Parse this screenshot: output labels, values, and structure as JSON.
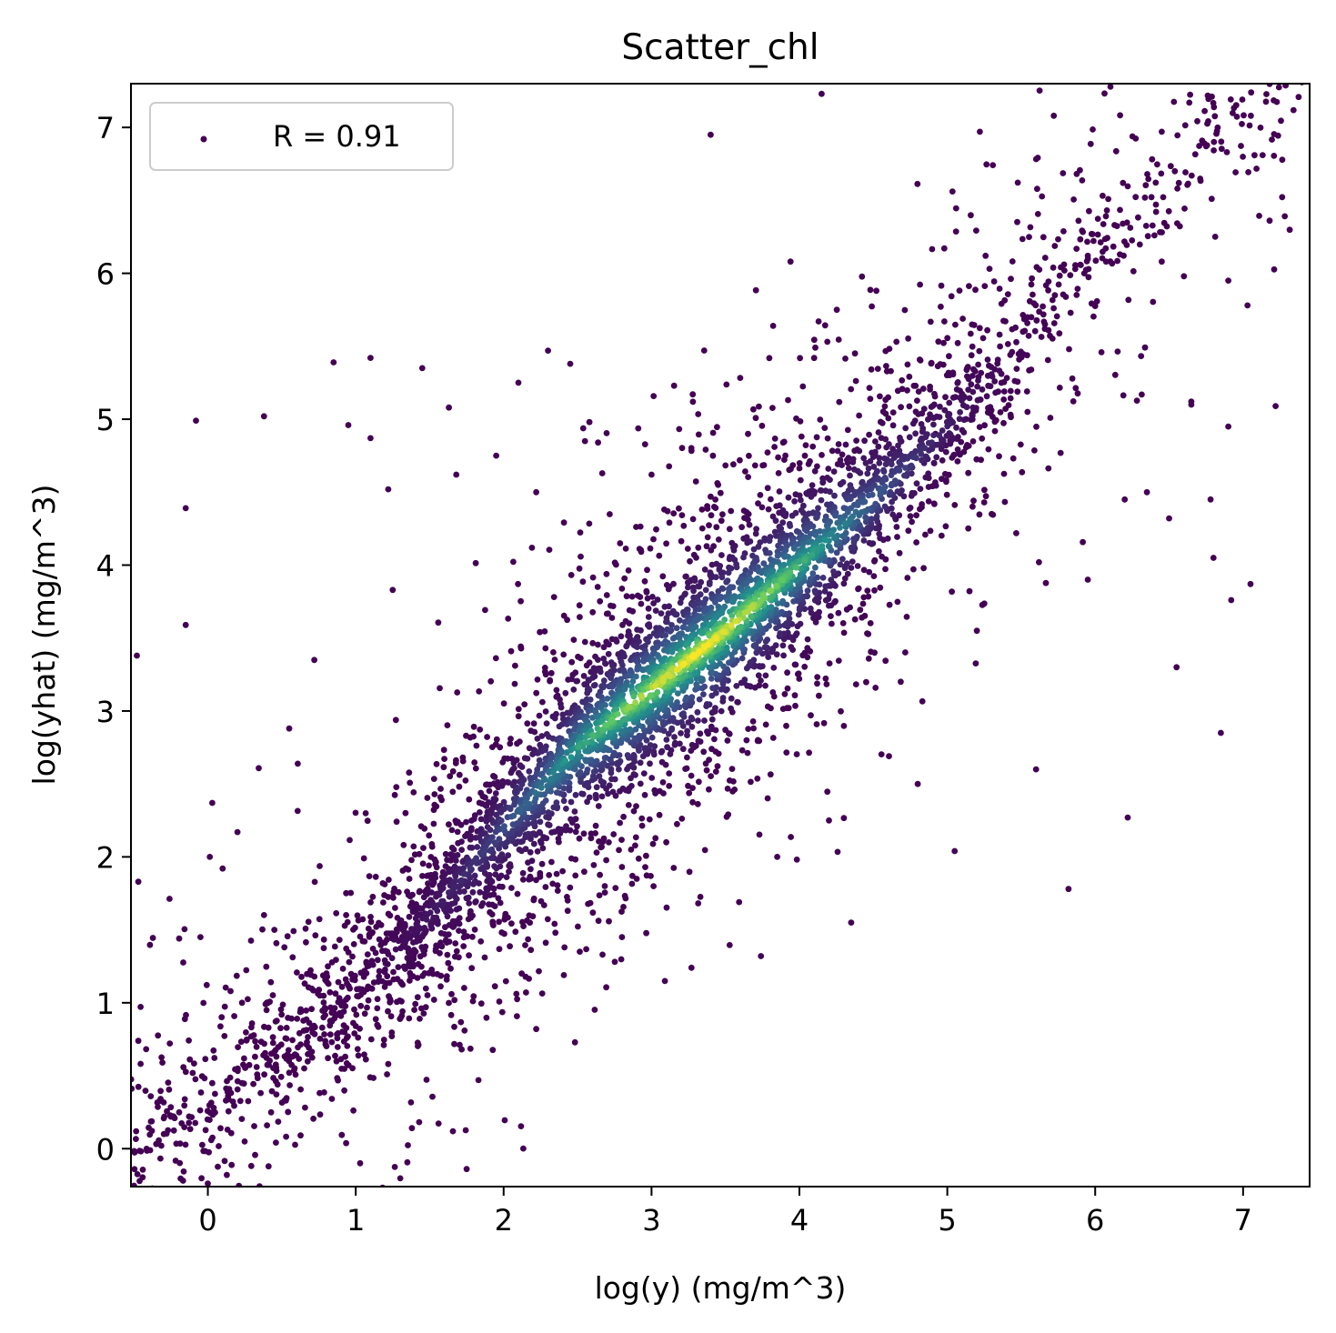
{
  "chart_data": {
    "type": "scatter",
    "title": "Scatter_chl",
    "xlabel": "log(y) (mg/m^3)",
    "ylabel": "log(yhat) (mg/m^3)",
    "xlim": [
      -0.52,
      7.45
    ],
    "ylim": [
      -0.26,
      7.3
    ],
    "xticks": [
      0,
      1,
      2,
      3,
      4,
      5,
      6,
      7
    ],
    "yticks": [
      0,
      1,
      2,
      3,
      4,
      5,
      6,
      7
    ],
    "grid": false,
    "colormap": "viridis",
    "color_encodes": "point density",
    "legend": {
      "placement": "top-left",
      "entries": [
        "R = 0.91"
      ]
    },
    "series": [
      {
        "name": "R = 0.91",
        "r": 0.91,
        "marker_color_low": "#440154",
        "marker_color_high": "#fde725",
        "core_trend": [
          [
            -0.5,
            0.05
          ],
          [
            0.0,
            0.3
          ],
          [
            0.5,
            0.7
          ],
          [
            1.0,
            1.1
          ],
          [
            1.5,
            1.6
          ],
          [
            2.0,
            2.2
          ],
          [
            2.5,
            2.75
          ],
          [
            3.0,
            3.15
          ],
          [
            3.5,
            3.55
          ],
          [
            4.0,
            4.0
          ],
          [
            4.5,
            4.45
          ],
          [
            5.0,
            4.95
          ],
          [
            5.5,
            5.5
          ],
          [
            6.0,
            6.1
          ],
          [
            6.5,
            6.65
          ],
          [
            7.0,
            7.05
          ],
          [
            7.4,
            7.3
          ]
        ],
        "outliers": [
          [
            -0.48,
            3.38
          ],
          [
            -0.47,
            1.83
          ],
          [
            -0.15,
            4.39
          ],
          [
            -0.15,
            3.59
          ],
          [
            -0.08,
            4.99
          ],
          [
            0.38,
            5.02
          ],
          [
            0.85,
            5.39
          ],
          [
            1.1,
            5.42
          ],
          [
            1.45,
            5.35
          ],
          [
            2.1,
            5.25
          ],
          [
            2.3,
            5.47
          ],
          [
            2.45,
            5.38
          ],
          [
            4.15,
            7.23
          ],
          [
            3.4,
            6.95
          ],
          [
            5.22,
            6.97
          ],
          [
            5.72,
            7.08
          ],
          [
            3.94,
            6.08
          ],
          [
            4.52,
            5.88
          ],
          [
            4.98,
            5.67
          ],
          [
            4.13,
            5.67
          ],
          [
            3.28,
            5.12
          ],
          [
            2.58,
            4.98
          ],
          [
            1.63,
            5.08
          ],
          [
            1.1,
            4.87
          ],
          [
            0.95,
            4.96
          ],
          [
            6.45,
            6.08
          ],
          [
            6.6,
            5.98
          ],
          [
            6.9,
            5.95
          ],
          [
            7.03,
            5.78
          ],
          [
            7.22,
            5.09
          ],
          [
            6.9,
            4.95
          ],
          [
            6.8,
            4.05
          ],
          [
            7.05,
            3.87
          ],
          [
            6.92,
            3.76
          ],
          [
            6.85,
            2.85
          ],
          [
            6.55,
            3.3
          ],
          [
            6.22,
            2.27
          ],
          [
            5.82,
            1.78
          ],
          [
            5.6,
            2.6
          ],
          [
            5.05,
            2.04
          ],
          [
            4.35,
            1.55
          ],
          [
            3.74,
            1.32
          ],
          [
            3.27,
            1.24
          ],
          [
            2.8,
            1.45
          ],
          [
            2.22,
            0.82
          ],
          [
            1.83,
            0.47
          ],
          [
            1.75,
            -0.14
          ],
          [
            1.03,
            -0.1
          ],
          [
            0.03,
            2.37
          ],
          [
            0.2,
            2.17
          ],
          [
            0.55,
            2.88
          ],
          [
            0.72,
            3.35
          ],
          [
            1.22,
            4.52
          ],
          [
            1.25,
            3.83
          ],
          [
            1.68,
            4.62
          ],
          [
            1.95,
            4.75
          ],
          [
            2.22,
            4.5
          ],
          [
            2.55,
            4.85
          ],
          [
            3.0,
            4.62
          ],
          [
            3.45,
            4.55
          ],
          [
            4.6,
            5.15
          ],
          [
            4.92,
            4.9
          ],
          [
            5.3,
            4.35
          ],
          [
            5.62,
            4.02
          ],
          [
            5.95,
            3.9
          ],
          [
            6.2,
            4.45
          ],
          [
            6.35,
            4.5
          ],
          [
            6.5,
            4.32
          ],
          [
            6.65,
            5.1
          ],
          [
            6.78,
            4.45
          ],
          [
            5.2,
            3.55
          ],
          [
            4.8,
            2.5
          ],
          [
            4.2,
            2.25
          ],
          [
            3.85,
            2.0
          ],
          [
            3.1,
            2.1
          ],
          [
            2.9,
            1.85
          ],
          [
            2.35,
            1.48
          ],
          [
            0.45,
            1.5
          ],
          [
            -0.05,
            1.45
          ],
          [
            0.1,
            1.92
          ]
        ]
      }
    ]
  }
}
